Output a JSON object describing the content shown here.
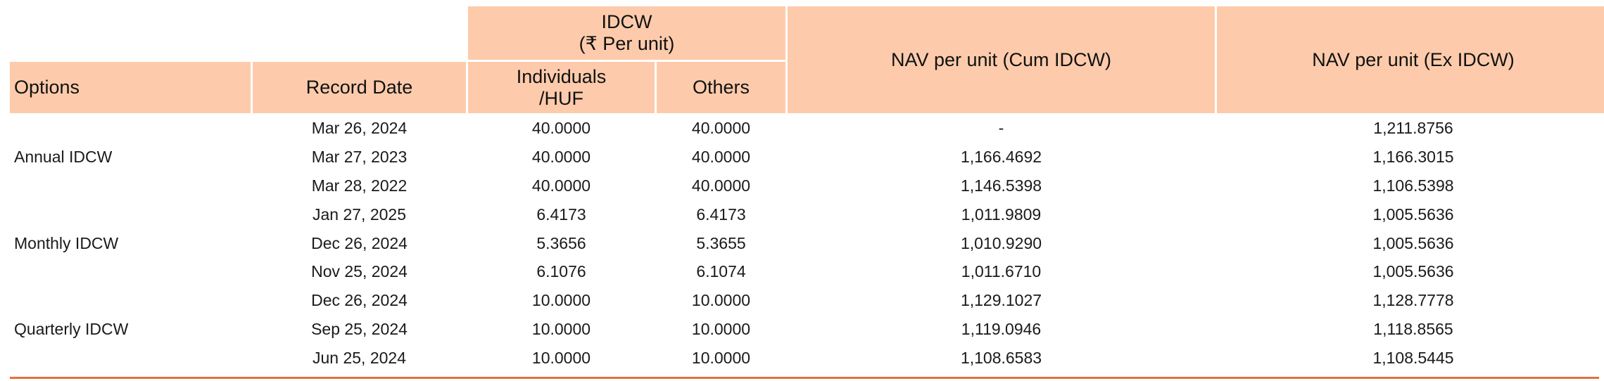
{
  "header": {
    "idcw_line1": "IDCW",
    "idcw_line2": "(₹ Per unit)",
    "options": "Options",
    "record_date": "Record Date",
    "individuals_line1": "Individuals",
    "individuals_line2": "/HUF",
    "others": "Others",
    "nav_cum": "NAV per unit (Cum IDCW)",
    "nav_ex": "NAV per unit (Ex IDCW)"
  },
  "groups": [
    {
      "option": "Annual IDCW",
      "rows": [
        {
          "record_date": "Mar 26, 2024",
          "individuals": "40.0000",
          "others": "40.0000",
          "nav_cum": "-",
          "nav_ex": "1,211.8756"
        },
        {
          "record_date": "Mar 27, 2023",
          "individuals": "40.0000",
          "others": "40.0000",
          "nav_cum": "1,166.4692",
          "nav_ex": "1,166.3015"
        },
        {
          "record_date": "Mar 28, 2022",
          "individuals": "40.0000",
          "others": "40.0000",
          "nav_cum": "1,146.5398",
          "nav_ex": "1,106.5398"
        }
      ]
    },
    {
      "option": "Monthly IDCW",
      "rows": [
        {
          "record_date": "Jan 27, 2025",
          "individuals": "6.4173",
          "others": "6.4173",
          "nav_cum": "1,011.9809",
          "nav_ex": "1,005.5636"
        },
        {
          "record_date": "Dec 26, 2024",
          "individuals": "5.3656",
          "others": "5.3655",
          "nav_cum": "1,010.9290",
          "nav_ex": "1,005.5636"
        },
        {
          "record_date": "Nov 25, 2024",
          "individuals": "6.1076",
          "others": "6.1074",
          "nav_cum": "1,011.6710",
          "nav_ex": "1,005.5636"
        }
      ]
    },
    {
      "option": "Quarterly IDCW",
      "rows": [
        {
          "record_date": "Dec 26, 2024",
          "individuals": "10.0000",
          "others": "10.0000",
          "nav_cum": "1,129.1027",
          "nav_ex": "1,128.7778"
        },
        {
          "record_date": "Sep 25, 2024",
          "individuals": "10.0000",
          "others": "10.0000",
          "nav_cum": "1,119.0946",
          "nav_ex": "1,118.8565"
        },
        {
          "record_date": "Jun 25, 2024",
          "individuals": "10.0000",
          "others": "10.0000",
          "nav_cum": "1,108.6583",
          "nav_ex": "1,108.5445"
        }
      ]
    }
  ],
  "colors": {
    "header_bg": "#fdcbab",
    "rule": "#e5703c"
  }
}
